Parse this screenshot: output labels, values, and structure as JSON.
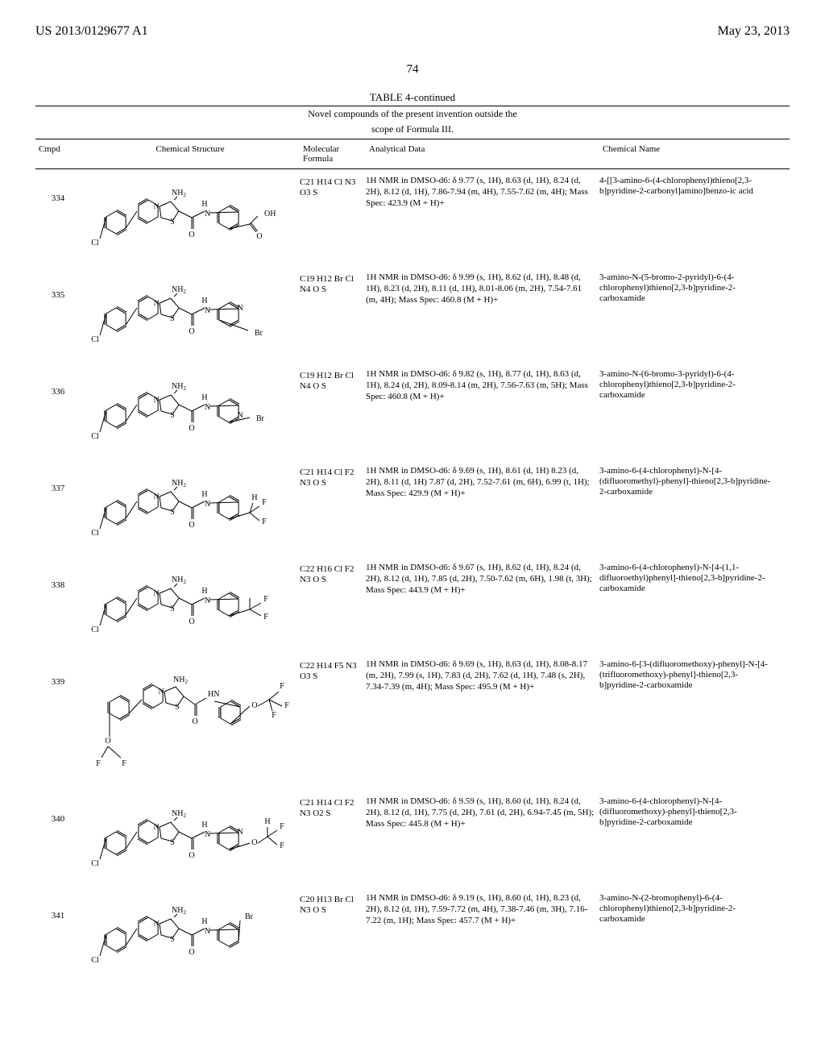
{
  "header": {
    "left": "US 2013/0129677 A1",
    "right": "May 23, 2013"
  },
  "page_number": "74",
  "table": {
    "label": "TABLE 4-continued",
    "caption_line1": "Novel compounds of the present invention outside the",
    "caption_line2": "scope of Formula III.",
    "columns": {
      "cmpd": "Cmpd",
      "structure": "Chemical Structure",
      "formula_line1": "Molecular",
      "formula_line2": "Formula",
      "analytical": "Analytical Data",
      "name": "Chemical Name"
    },
    "rows": [
      {
        "cmpd": "334",
        "formula": "C21 H14 Cl N3 O3 S",
        "analytical": "1H NMR in DMSO-d6: δ 9.77 (s, 1H), 8.63 (d, 1H), 8.24 (d, 2H), 8.12 (d, 1H), 7.86-7.94 (m, 4H), 7.55-7.62 (m, 4H); Mass Spec: 423.9 (M + H)+",
        "name": "4-[[3-amino-6-(4-chlorophenyl)thieno[2,3-b]pyridine-2-carbonyl]amino]benzo-ic acid",
        "struct_labels": [
          "Cl",
          "N",
          "S",
          "NH2",
          "H",
          "N",
          "O",
          "O",
          "OH"
        ]
      },
      {
        "cmpd": "335",
        "formula": "C19 H12 Br Cl N4 O S",
        "analytical": "1H NMR in DMSO-d6: δ 9.99 (s, 1H), 8.62 (d, 1H), 8.48 (d, 1H), 8.23 (d, 2H), 8.11 (d, 1H), 8.01-8.06 (m, 2H), 7.54-7.61 (m, 4H); Mass Spec: 460.8 (M + H)+",
        "name": "3-amino-N-(5-bromo-2-pyridyl)-6-(4-chlorophenyl)thieno[2,3-b]pyridine-2-carboxamide",
        "struct_labels": [
          "Cl",
          "N",
          "S",
          "NH2",
          "H",
          "N",
          "O",
          "N",
          "Br"
        ]
      },
      {
        "cmpd": "336",
        "formula": "C19 H12 Br Cl N4 O S",
        "analytical": "1H NMR in DMSO-d6: δ 9.82 (s, 1H), 8.77 (d, 1H), 8.63 (d, 1H), 8.24 (d, 2H), 8.09-8.14 (m, 2H), 7.56-7.63 (m, 5H); Mass Spec: 460.8 (M + H)+",
        "name": "3-amino-N-(6-bromo-3-pyridyl)-6-(4-chlorophenyl)thieno[2,3-b]pyridine-2-carboxamide",
        "struct_labels": [
          "Cl",
          "N",
          "S",
          "NH2",
          "H",
          "N",
          "O",
          "N",
          "Br"
        ]
      },
      {
        "cmpd": "337",
        "formula": "C21 H14 Cl F2 N3 O S",
        "analytical": "1H NMR in DMSO-d6: δ 9.69 (s, 1H), 8.61 (d, 1H) 8.23 (d, 2H), 8.11 (d, 1H) 7.87 (d, 2H), 7.52-7.61 (m, 6H), 6.99 (t, 1H); Mass Spec: 429.9 (M + H)+",
        "name": "3-amino-6-(4-chlorophenyl)-N-[4-(difluoromethyl)-phenyl]-thieno[2,3-b]pyridine-2-carboxamide",
        "struct_labels": [
          "Cl",
          "N",
          "S",
          "NH2",
          "H",
          "N",
          "O",
          "F",
          "H",
          "F"
        ]
      },
      {
        "cmpd": "338",
        "formula": "C22 H16 Cl F2 N3 O S",
        "analytical": "1H NMR in DMSO-d6: δ 9.67 (s, 1H), 8.62 (d, 1H), 8.24 (d, 2H), 8.12 (d, 1H), 7.85 (d, 2H), 7.50-7.62 (m, 6H), 1.98 (t, 3H); Mass Spec: 443.9 (M + H)+",
        "name": "3-amino-6-(4-chlorophenyl)-N-[4-(1,1-difluoroethyl)phenyl]-thieno[2,3-b]pyridine-2-carboxamide",
        "struct_labels": [
          "Cl",
          "N",
          "S",
          "NH2",
          "H",
          "N",
          "O",
          "F",
          "F"
        ]
      },
      {
        "cmpd": "339",
        "formula": "C22 H14 F5 N3 O3 S",
        "analytical": "1H NMR in DMSO-d6: δ 9.69 (s, 1H), 8.63 (d, 1H), 8.08-8.17 (m, 2H), 7.99 (s, 1H), 7.83 (d, 2H), 7.62 (d, 1H), 7.48 (s, 2H), 7.34-7.39 (m, 4H); Mass Spec: 495.9 (M + H)+",
        "name": "3-amino-6-[3-(difluoromethoxy)-phenyl]-N-[4-(trifluoromethoxy)-phenyl]-thieno[2,3-b]pyridine-2-carboxamide",
        "struct_labels": [
          "O",
          "F",
          "F",
          "N",
          "S",
          "NH2",
          "O",
          "HN",
          "O",
          "F",
          "F",
          "F"
        ]
      },
      {
        "cmpd": "340",
        "formula": "C21 H14 Cl F2 N3 O2 S",
        "analytical": "1H NMR in DMSO-d6: δ 9.59 (s, 1H), 8.60 (d, 1H), 8.24 (d, 2H), 8.12 (d, 1H), 7.75 (d, 2H), 7.61 (d, 2H), 6.94-7.45 (m, 5H); Mass Spec: 445.8 (M + H)+",
        "name": "3-amino-6-(4-chlorophenyl)-N-[4-(difluoromethoxy)-phenyl]-thieno[2,3-b]pyridine-2-carboxamide",
        "struct_labels": [
          "Cl",
          "N",
          "S",
          "NH2",
          "H",
          "N",
          "O",
          "N",
          "O",
          "F",
          "H",
          "F"
        ]
      },
      {
        "cmpd": "341",
        "formula": "C20 H13 Br Cl N3 O S",
        "analytical": "1H NMR in DMSO-d6: δ 9.19 (s, 1H), 8.60 (d, 1H), 8.23 (d, 2H), 8.12 (d, 1H), 7.59-7.72 (m, 4H), 7.38-7.46 (m, 3H), 7.16-7.22 (m, 1H); Mass Spec: 457.7 (M + H)+",
        "name": "3-amino-N-(2-bromophenyl)-6-(4-chlorophenyl)thieno[2,3-b]pyridine-2-carboxamide",
        "struct_labels": [
          "Cl",
          "N",
          "S",
          "NH2",
          "H",
          "N",
          "O",
          "Br"
        ]
      }
    ]
  },
  "style": {
    "bg": "#ffffff",
    "fg": "#000000",
    "font_body": 11,
    "font_header": 16,
    "row_grid": "56px 272px 82px 290px 220px",
    "svg_stroke": "#000000",
    "svg_stroke_width": 1
  }
}
